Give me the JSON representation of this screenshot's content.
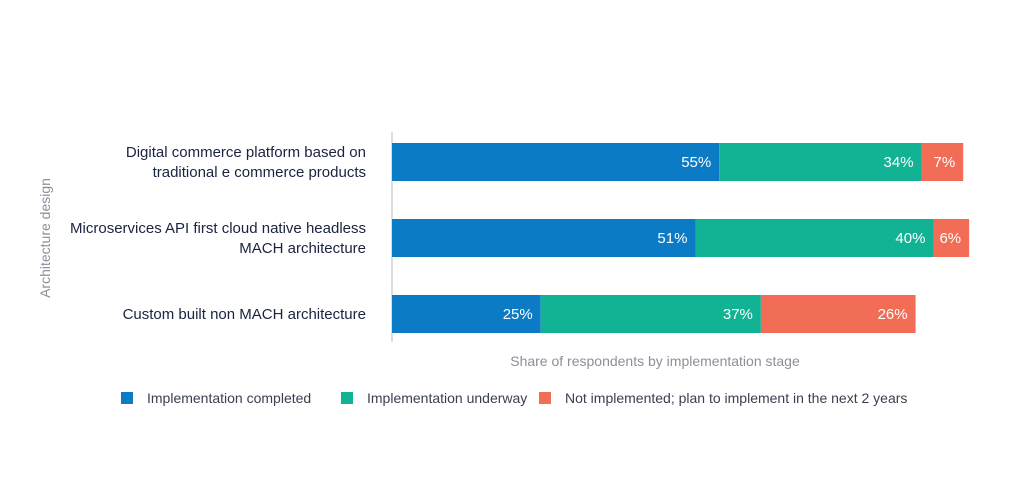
{
  "chart_data": {
    "type": "bar",
    "orientation": "horizontal",
    "stacked": true,
    "title": "",
    "xlabel": "Share of respondents by implementation stage",
    "ylabel": "Architecture design",
    "categories": [
      [
        "Digital commerce platform based on",
        "traditional e commerce products"
      ],
      [
        "Microservices API first cloud native headless",
        "MACH architecture"
      ],
      [
        "Custom built non MACH architecture"
      ]
    ],
    "xlim": [
      0,
      100
    ],
    "grid": false,
    "legend_position": "bottom",
    "series": [
      {
        "name": "Implementation completed",
        "color": "#0a7bc4",
        "values": [
          55,
          51,
          25
        ],
        "labels": [
          "55%",
          "51%",
          "25%"
        ]
      },
      {
        "name": "Implementation underway",
        "color": "#12b394",
        "values": [
          34,
          40,
          37
        ],
        "labels": [
          "34%",
          "40%",
          "37%"
        ]
      },
      {
        "name": "Not implemented; plan to implement in the next 2 years",
        "color": "#f26d55",
        "values": [
          7,
          6,
          26
        ],
        "labels": [
          "7%",
          "6%",
          "26%"
        ]
      }
    ]
  }
}
